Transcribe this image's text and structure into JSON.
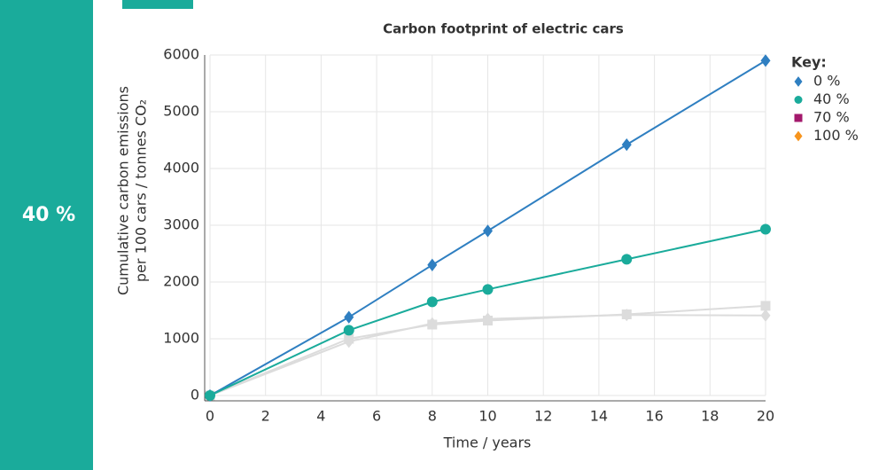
{
  "sidebar": {
    "label": "40 %"
  },
  "chart_data": {
    "type": "line",
    "title": "Carbon footprint of electric cars",
    "x_label": "Time / years",
    "y_label": [
      "Cumulative carbon emissions",
      "per 100 cars / tonnes CO₂"
    ],
    "legend_title": "Key:",
    "legend": "right",
    "x": [
      0,
      5,
      8,
      10,
      15,
      20
    ],
    "series": [
      {
        "name": "0 %",
        "color": "#2f7fc1",
        "marker": "diamond",
        "dim": false,
        "values": [
          0,
          1380,
          2300,
          2900,
          4420,
          5900
        ]
      },
      {
        "name": "40 %",
        "color": "#1aab9b",
        "marker": "circle",
        "dim": false,
        "values": [
          0,
          1150,
          1650,
          1870,
          2400,
          2930
        ]
      },
      {
        "name": "70 %",
        "color": "#a3196c",
        "marker": "square",
        "dim": true,
        "values": [
          0,
          1000,
          1250,
          1320,
          1430,
          1580
        ]
      },
      {
        "name": "100 %",
        "color": "#f7941d",
        "marker": "diamond",
        "dim": true,
        "values": [
          0,
          950,
          1270,
          1350,
          1420,
          1410
        ]
      }
    ],
    "xlim": [
      0,
      20
    ],
    "xticks": [
      0,
      2,
      4,
      6,
      8,
      10,
      12,
      14,
      16,
      18,
      20
    ],
    "ylim": [
      0,
      6000
    ],
    "yticks": [
      0,
      1000,
      2000,
      3000,
      4000,
      5000,
      6000
    ],
    "grid": true
  }
}
